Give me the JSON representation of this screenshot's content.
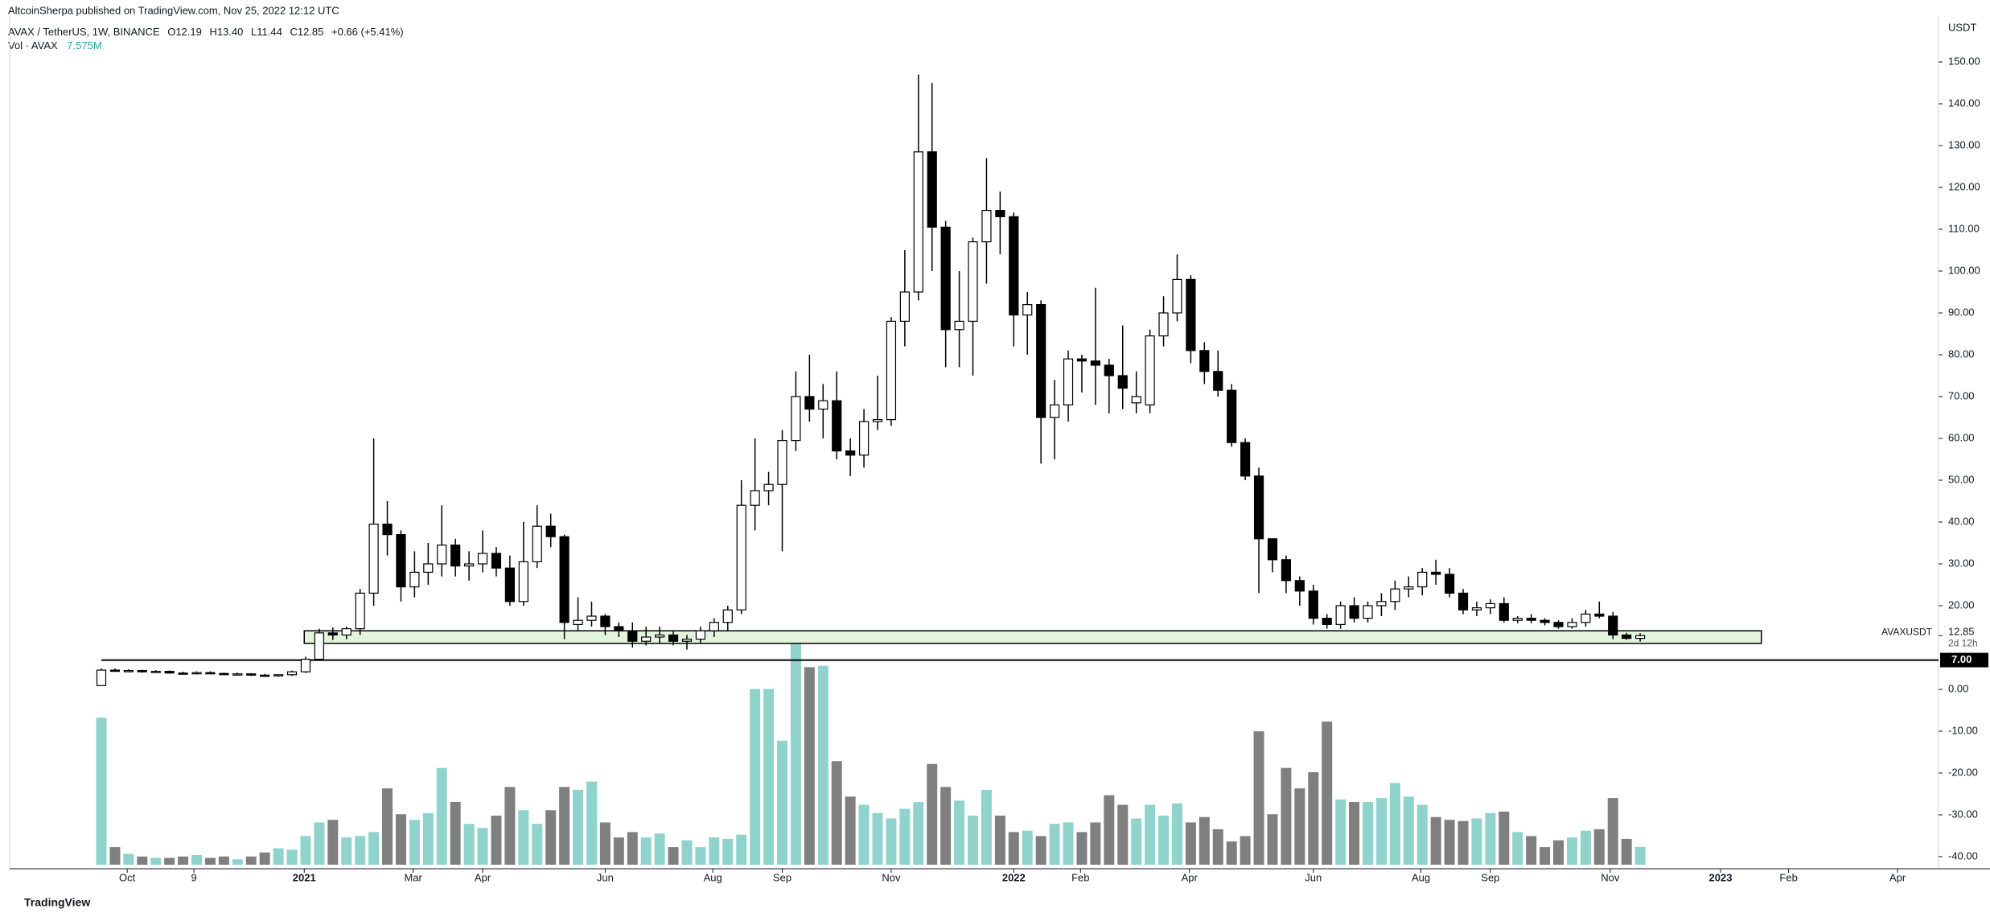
{
  "chart_data": {
    "type": "candlestick",
    "header": {
      "published": "AltcoinSherpa published on TradingView.com, Nov 25, 2022 12:12 UTC",
      "symbol": "AVAX / TetherUS, 1W, BINANCE",
      "open": "O12.19",
      "high": "H13.40",
      "low": "L11.44",
      "close": "C12.85",
      "change": "+0.66 (+5.41%)",
      "vol_name": "Vol · AVAX",
      "vol_value": "7.575M",
      "currency": "USDT",
      "footer": "TradingView"
    },
    "up_color": "#ffffff",
    "down_color": "#000000",
    "wick_color": "#000000",
    "volume_up_color": "#8fd3cc",
    "volume_down_color": "#7f7f7f",
    "ohlc": [
      [
        0.9,
        5.0,
        0.9,
        4.6
      ],
      [
        4.6,
        5.0,
        4.2,
        4.4
      ],
      [
        4.4,
        4.8,
        4.1,
        4.5
      ],
      [
        4.5,
        4.7,
        4.0,
        4.2
      ],
      [
        4.2,
        4.6,
        3.9,
        4.3
      ],
      [
        4.3,
        4.5,
        3.8,
        3.9
      ],
      [
        3.9,
        4.2,
        3.6,
        3.8
      ],
      [
        3.8,
        4.3,
        3.6,
        4.0
      ],
      [
        4.0,
        4.3,
        3.7,
        3.8
      ],
      [
        3.8,
        4.0,
        3.4,
        3.6
      ],
      [
        3.6,
        4.0,
        3.3,
        3.7
      ],
      [
        3.7,
        3.9,
        3.2,
        3.4
      ],
      [
        3.4,
        3.7,
        3.1,
        3.3
      ],
      [
        3.3,
        3.6,
        3.0,
        3.5
      ],
      [
        3.5,
        4.5,
        3.2,
        4.2
      ],
      [
        4.2,
        7.8,
        3.9,
        7.2
      ],
      [
        7.2,
        14.5,
        6.8,
        13.5
      ],
      [
        13.5,
        14.8,
        11.8,
        13.0
      ],
      [
        13.0,
        15.0,
        12.0,
        14.5
      ],
      [
        14.5,
        24.0,
        13.0,
        23.0
      ],
      [
        23.0,
        60.0,
        20.0,
        39.5
      ],
      [
        39.5,
        45.0,
        32.0,
        37.0
      ],
      [
        37.0,
        38.0,
        21.0,
        24.5
      ],
      [
        24.5,
        33.0,
        22.0,
        28.0
      ],
      [
        28.0,
        35.0,
        25.0,
        30.0
      ],
      [
        30.0,
        44.0,
        27.0,
        34.5
      ],
      [
        34.5,
        36.0,
        27.0,
        29.5
      ],
      [
        29.5,
        33.0,
        26.0,
        30.0
      ],
      [
        30.0,
        38.0,
        28.0,
        32.5
      ],
      [
        32.5,
        34.0,
        27.0,
        29.0
      ],
      [
        29.0,
        32.0,
        20.0,
        21.0
      ],
      [
        21.0,
        40.0,
        20.0,
        30.5
      ],
      [
        30.5,
        44.0,
        29.0,
        39.0
      ],
      [
        39.0,
        42.0,
        34.0,
        36.5
      ],
      [
        36.5,
        37.0,
        12.0,
        16.0
      ],
      [
        15.5,
        22.0,
        14.0,
        16.5
      ],
      [
        16.5,
        21.0,
        15.0,
        17.5
      ],
      [
        17.5,
        18.0,
        13.0,
        15.0
      ],
      [
        15.0,
        16.0,
        12.5,
        14.0
      ],
      [
        14.0,
        16.0,
        10.0,
        11.5
      ],
      [
        11.5,
        15.0,
        10.5,
        12.5
      ],
      [
        12.5,
        15.0,
        11.0,
        13.0
      ],
      [
        13.0,
        14.0,
        10.5,
        11.5
      ],
      [
        11.5,
        13.0,
        9.5,
        12.0
      ],
      [
        12.0,
        15.0,
        11.0,
        14.0
      ],
      [
        14.0,
        17.0,
        12.5,
        16.0
      ],
      [
        16.0,
        20.0,
        14.0,
        19.0
      ],
      [
        19.0,
        50.0,
        18.0,
        44.0
      ],
      [
        44.0,
        60.0,
        38.0,
        47.5
      ],
      [
        47.5,
        52.0,
        44.0,
        49.0
      ],
      [
        49.0,
        62.0,
        33.0,
        59.5
      ],
      [
        59.5,
        76.0,
        57.0,
        70.0
      ],
      [
        70.0,
        80.0,
        64.0,
        67.0
      ],
      [
        67.0,
        73.0,
        60.0,
        69.0
      ],
      [
        69.0,
        76.0,
        55.0,
        57.0
      ],
      [
        57.0,
        60.0,
        51.0,
        56.0
      ],
      [
        56.0,
        67.0,
        53.0,
        64.0
      ],
      [
        64.0,
        75.0,
        62.0,
        64.5
      ],
      [
        64.5,
        89.0,
        63.0,
        88.0
      ],
      [
        88.0,
        105.0,
        82.0,
        95.0
      ],
      [
        95.0,
        147.0,
        93.0,
        128.5
      ],
      [
        128.5,
        145.0,
        100.0,
        110.5
      ],
      [
        110.5,
        112.0,
        77.0,
        86.0
      ],
      [
        86.0,
        100.0,
        77.0,
        88.0
      ],
      [
        88.0,
        108.0,
        75.0,
        107.0
      ],
      [
        107.0,
        127.0,
        97.0,
        114.5
      ],
      [
        114.5,
        119.0,
        104.0,
        113.0
      ],
      [
        113.0,
        114.0,
        82.0,
        89.5
      ],
      [
        89.5,
        95.0,
        80.0,
        92.0
      ],
      [
        92.0,
        93.0,
        54.0,
        65.0
      ],
      [
        65.0,
        74.0,
        55.0,
        68.0
      ],
      [
        68.0,
        81.0,
        64.0,
        79.0
      ],
      [
        79.0,
        80.0,
        71.0,
        78.5
      ],
      [
        78.5,
        96.0,
        68.0,
        77.5
      ],
      [
        77.5,
        79.0,
        66.0,
        75.0
      ],
      [
        75.0,
        87.0,
        67.0,
        72.0
      ],
      [
        68.5,
        76.0,
        66.0,
        70.0
      ],
      [
        68.0,
        86.0,
        66.0,
        84.5
      ],
      [
        84.5,
        94.0,
        82.0,
        90.0
      ],
      [
        90.0,
        104.0,
        88.0,
        98.0
      ],
      [
        98.0,
        99.0,
        78.0,
        81.0
      ],
      [
        81.0,
        83.0,
        73.0,
        76.0
      ],
      [
        76.0,
        81.0,
        70.0,
        71.5
      ],
      [
        71.5,
        73.0,
        58.0,
        59.0
      ],
      [
        59.0,
        60.0,
        50.0,
        51.0
      ],
      [
        51.0,
        53.0,
        23.0,
        36.0
      ],
      [
        36.0,
        36.0,
        28.0,
        31.0
      ],
      [
        31.0,
        32.0,
        23.0,
        26.0
      ],
      [
        26.0,
        27.0,
        20.0,
        23.5
      ],
      [
        23.5,
        25.0,
        15.5,
        17.0
      ],
      [
        17.0,
        18.0,
        14.5,
        15.5
      ],
      [
        15.5,
        21.0,
        14.5,
        20.0
      ],
      [
        20.0,
        22.0,
        16.0,
        17.0
      ],
      [
        17.0,
        21.0,
        16.0,
        20.0
      ],
      [
        20.0,
        23.0,
        17.5,
        21.0
      ],
      [
        21.0,
        26.0,
        19.0,
        24.0
      ],
      [
        24.0,
        27.0,
        22.0,
        24.5
      ],
      [
        24.5,
        29.0,
        22.5,
        28.0
      ],
      [
        28.0,
        31.0,
        25.0,
        27.5
      ],
      [
        27.5,
        29.0,
        22.0,
        23.0
      ],
      [
        23.0,
        24.0,
        18.0,
        19.0
      ],
      [
        19.0,
        21.0,
        17.5,
        19.5
      ],
      [
        19.5,
        21.5,
        18.0,
        20.5
      ],
      [
        20.5,
        22.0,
        16.0,
        16.5
      ],
      [
        16.5,
        17.5,
        15.8,
        17.0
      ],
      [
        17.0,
        18.0,
        15.8,
        16.5
      ],
      [
        16.5,
        17.0,
        15.3,
        16.0
      ],
      [
        16.0,
        16.5,
        14.5,
        15.0
      ],
      [
        15.0,
        17.0,
        14.5,
        16.0
      ],
      [
        16.0,
        19.0,
        15.0,
        18.0
      ],
      [
        18.0,
        21.0,
        17.0,
        17.5
      ],
      [
        17.5,
        18.5,
        12.0,
        13.0
      ],
      [
        13.0,
        13.5,
        11.8,
        12.19
      ],
      [
        12.19,
        13.4,
        11.44,
        12.85
      ]
    ],
    "volume": [
      62.6,
      7.5,
      4.6,
      3.5,
      2.9,
      2.9,
      3.5,
      4.1,
      2.9,
      3.5,
      2.3,
      3.5,
      5.2,
      7.0,
      6.4,
      12.2,
      18.0,
      19.1,
      11.6,
      12.2,
      13.9,
      32.5,
      21.5,
      19.1,
      22.0,
      41.2,
      26.7,
      17.4,
      15.7,
      20.9,
      33.1,
      23.2,
      17.4,
      23.2,
      33.1,
      31.9,
      35.4,
      18.0,
      11.6,
      13.9,
      11.6,
      13.3,
      7.5,
      10.4,
      7.5,
      11.6,
      11.0,
      12.8,
      74.8,
      74.8,
      52.8,
      95.1,
      84.1,
      84.7,
      44.1,
      29.0,
      25.5,
      22.0,
      19.7,
      23.8,
      26.7,
      42.9,
      33.1,
      27.3,
      20.9,
      31.9,
      20.9,
      13.9,
      14.5,
      12.2,
      17.4,
      18.0,
      13.9,
      18.0,
      29.6,
      25.5,
      19.7,
      25.5,
      20.9,
      26.1,
      18.0,
      20.3,
      15.1,
      9.9,
      12.2,
      56.8,
      21.5,
      41.2,
      32.5,
      39.4,
      60.9,
      27.8,
      26.7,
      26.7,
      28.4,
      34.8,
      29.0,
      25.5,
      20.3,
      19.1,
      18.6,
      19.7,
      22.0,
      22.6,
      13.9,
      12.2,
      7.5,
      10.4,
      11.6,
      14.5,
      15.1,
      28.4,
      11.0,
      7.575
    ],
    "volume_lim": [
      0,
      100
    ],
    "ylim": [
      -45,
      155
    ],
    "yticks": [
      {
        "value": 150,
        "label": "150.00"
      },
      {
        "value": 140,
        "label": "140.00"
      },
      {
        "value": 130,
        "label": "130.00"
      },
      {
        "value": 120,
        "label": "120.00"
      },
      {
        "value": 110,
        "label": "110.00"
      },
      {
        "value": 100,
        "label": "100.00"
      },
      {
        "value": 90,
        "label": "90.00"
      },
      {
        "value": 80,
        "label": "80.00"
      },
      {
        "value": 70,
        "label": "70.00"
      },
      {
        "value": 60,
        "label": "60.00"
      },
      {
        "value": 50,
        "label": "50.00"
      },
      {
        "value": 40,
        "label": "40.00"
      },
      {
        "value": 30,
        "label": "30.00"
      },
      {
        "value": 20,
        "label": "20.00"
      },
      {
        "value": 0,
        "label": "0.00"
      },
      {
        "value": -10,
        "label": "-10.00"
      },
      {
        "value": -20,
        "label": "-20.00"
      },
      {
        "value": -30,
        "label": "-30.00"
      },
      {
        "value": -40,
        "label": "-40.00"
      }
    ],
    "xticks": [
      {
        "value": 1.9,
        "label": "Oct"
      },
      {
        "value": 6.8,
        "label": "9"
      },
      {
        "value": 14.9,
        "label": "2021"
      },
      {
        "value": 22.9,
        "label": "Mar"
      },
      {
        "value": 28.0,
        "label": "Apr"
      },
      {
        "value": 37.0,
        "label": "Jun"
      },
      {
        "value": 44.9,
        "label": "Aug"
      },
      {
        "value": 50.0,
        "label": "Sep"
      },
      {
        "value": 58.0,
        "label": "Nov"
      },
      {
        "value": 67.0,
        "label": "2022"
      },
      {
        "value": 71.9,
        "label": "Feb"
      },
      {
        "value": 79.9,
        "label": "Apr"
      },
      {
        "value": 89.0,
        "label": "Jun"
      },
      {
        "value": 96.9,
        "label": "Aug"
      },
      {
        "value": 102.0,
        "label": "Sep"
      },
      {
        "value": 110.8,
        "label": "Nov"
      },
      {
        "value": 118.9,
        "label": "2023"
      },
      {
        "value": 123.9,
        "label": "Feb"
      },
      {
        "value": 131.9,
        "label": "Apr"
      }
    ],
    "zone": {
      "low": 11,
      "high": 14,
      "start": 14.9,
      "end": 121.9,
      "color": "#e3f4dc"
    },
    "level": {
      "value": 7,
      "label": "7.00",
      "start": 0
    },
    "last_price": {
      "value": 12.85,
      "label": "12.85",
      "symbol": "AVAXUSDT",
      "countdown": "2d 12h"
    }
  }
}
